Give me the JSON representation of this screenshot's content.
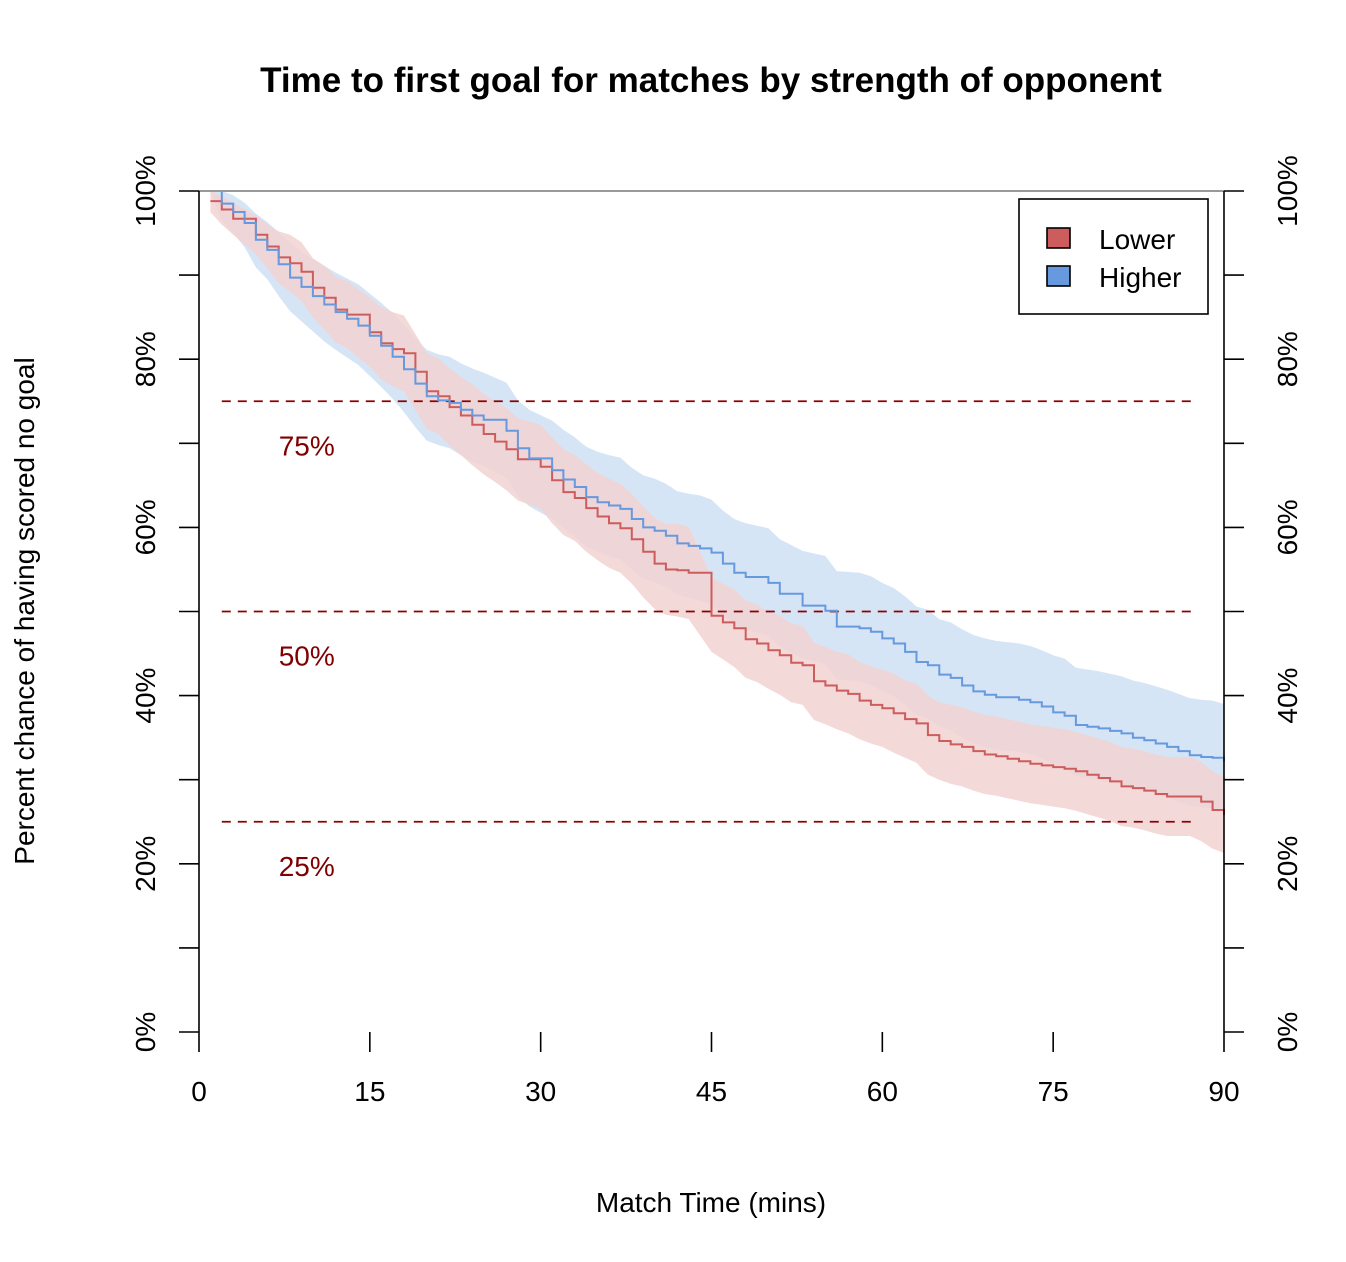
{
  "chart_data": {
    "type": "line",
    "title": "Time to first goal for matches by strength of opponent",
    "xlabel": "Match Time (mins)",
    "ylabel": "Percent chance of having scored no goal",
    "xlim": [
      0,
      90
    ],
    "ylim": [
      0,
      100
    ],
    "x_ticks": [
      "0",
      "15",
      "30",
      "45",
      "60",
      "75",
      "90"
    ],
    "x_tick_values": [
      0,
      15,
      30,
      45,
      60,
      75,
      90
    ],
    "y_ticks": [
      "0%",
      "20%",
      "40%",
      "60%",
      "80%",
      "100%"
    ],
    "y_tick_values": [
      0,
      20,
      40,
      60,
      80,
      100
    ],
    "y_minor_tick_values": [
      10,
      30,
      50,
      70,
      90
    ],
    "grid": false,
    "legend_position": "top-right",
    "reference_lines": [
      {
        "y": 75,
        "label": "75%"
      },
      {
        "y": 50,
        "label": "50%"
      },
      {
        "y": 25,
        "label": "25%"
      }
    ],
    "series": [
      {
        "name": "Lower",
        "color": "#cd5c5c",
        "band_color": "#f2d2d2",
        "x": [
          1,
          2,
          3,
          5,
          6,
          7,
          8,
          9,
          10,
          11,
          12,
          13,
          15,
          16,
          17,
          18,
          19,
          20,
          21,
          22,
          23,
          24,
          25,
          26,
          27,
          28,
          30,
          31,
          32,
          33,
          34,
          35,
          36,
          37,
          38,
          39,
          40,
          41,
          42,
          43,
          45,
          46,
          47,
          48,
          49,
          50,
          51,
          52,
          53,
          54,
          55,
          56,
          57,
          58,
          59,
          60,
          61,
          62,
          63,
          64,
          65,
          66,
          67,
          68,
          69,
          70,
          71,
          72,
          73,
          74,
          75,
          76,
          77,
          78,
          79,
          80,
          81,
          82,
          83,
          84,
          85,
          86,
          87,
          88,
          89,
          90
        ],
        "y": [
          98.8,
          97.8,
          96.7,
          94.8,
          93.4,
          92.1,
          91.4,
          90.4,
          88.5,
          87.3,
          85.9,
          85.3,
          83.2,
          81.9,
          81.2,
          80.7,
          78.5,
          76.2,
          75.6,
          74.3,
          73.3,
          72.2,
          71.1,
          70.2,
          69.3,
          68.1,
          67.2,
          65.6,
          64.2,
          63.5,
          62.3,
          61.3,
          60.5,
          59.9,
          58.6,
          57.1,
          55.7,
          55.0,
          54.9,
          54.6,
          49.5,
          48.7,
          48.0,
          46.7,
          46.2,
          45.4,
          44.8,
          43.9,
          43.6,
          41.7,
          41.2,
          40.6,
          40.2,
          39.4,
          38.9,
          38.5,
          37.9,
          37.2,
          36.7,
          35.3,
          34.6,
          34.2,
          33.9,
          33.4,
          33.0,
          32.8,
          32.5,
          32.2,
          31.9,
          31.7,
          31.5,
          31.3,
          31.0,
          30.6,
          30.2,
          29.8,
          29.2,
          29.0,
          28.7,
          28.3,
          28.0,
          28.0,
          28.0,
          27.4,
          26.4,
          25.8
        ],
        "lower": [
          97.5,
          96.0,
          94.8,
          92.5,
          90.8,
          89.0,
          88.0,
          86.9,
          85.0,
          83.5,
          82.0,
          81.3,
          79.1,
          77.6,
          76.8,
          76.2,
          74.0,
          71.7,
          71.1,
          69.7,
          68.6,
          67.4,
          66.3,
          65.4,
          64.4,
          63.2,
          62.2,
          60.5,
          59.1,
          58.4,
          57.1,
          56.1,
          55.2,
          54.6,
          53.3,
          51.7,
          50.3,
          49.6,
          49.4,
          49.1,
          45.2,
          44.3,
          43.4,
          42.1,
          41.6,
          40.8,
          40.1,
          39.2,
          38.9,
          37.1,
          36.6,
          36.0,
          35.5,
          34.8,
          34.3,
          33.9,
          33.2,
          32.6,
          32.0,
          30.6,
          30.0,
          29.5,
          29.2,
          28.7,
          28.3,
          28.1,
          27.8,
          27.5,
          27.2,
          27.0,
          26.8,
          26.6,
          26.3,
          25.9,
          25.5,
          25.1,
          24.5,
          24.3,
          24.0,
          23.6,
          23.3,
          23.3,
          23.3,
          22.7,
          21.8,
          21.3
        ],
        "upper": [
          100,
          99.4,
          98.6,
          97.1,
          96.0,
          95.2,
          94.8,
          93.9,
          92.0,
          91.1,
          89.8,
          89.3,
          87.3,
          86.2,
          85.6,
          85.2,
          83.0,
          80.7,
          80.1,
          78.9,
          77.9,
          77.0,
          75.9,
          75.0,
          74.2,
          73.0,
          72.2,
          70.7,
          69.3,
          68.6,
          67.5,
          66.5,
          65.8,
          65.2,
          64.0,
          62.5,
          61.1,
          60.4,
          60.4,
          60.1,
          54.1,
          53.3,
          52.6,
          51.3,
          50.8,
          50.0,
          49.5,
          48.6,
          48.3,
          46.3,
          45.8,
          45.2,
          44.9,
          44.0,
          43.5,
          43.1,
          42.6,
          41.8,
          41.4,
          40.0,
          39.2,
          38.9,
          38.6,
          38.1,
          37.7,
          37.5,
          37.2,
          36.9,
          36.6,
          36.4,
          36.2,
          36.0,
          35.7,
          35.3,
          34.9,
          34.5,
          33.9,
          33.7,
          33.4,
          33.0,
          32.7,
          32.7,
          32.7,
          32.1,
          31.0,
          30.4
        ]
      },
      {
        "name": "Higher",
        "color": "#6699dd",
        "band_color": "#cfe0f4",
        "x": [
          1,
          2,
          3,
          4,
          5,
          6,
          7,
          8,
          9,
          10,
          11,
          12,
          13,
          14,
          15,
          16,
          17,
          18,
          19,
          20,
          21,
          22,
          23,
          24,
          25,
          27,
          28,
          29,
          31,
          32,
          33,
          34,
          35,
          36,
          37,
          38,
          39,
          40,
          41,
          42,
          43,
          44,
          45,
          46,
          47,
          48,
          50,
          51,
          53,
          55,
          56,
          58,
          59,
          60,
          61,
          62,
          63,
          64,
          65,
          66,
          67,
          68,
          69,
          70,
          72,
          73,
          74,
          75,
          76,
          77,
          78,
          79,
          80,
          81,
          82,
          83,
          84,
          85,
          86,
          87,
          88,
          89,
          90
        ],
        "y": [
          100,
          98.5,
          97.5,
          96.2,
          94.2,
          93.0,
          91.3,
          89.7,
          88.6,
          87.5,
          86.5,
          85.6,
          84.8,
          84.0,
          82.8,
          81.6,
          80.3,
          78.8,
          77.1,
          75.6,
          75.1,
          74.8,
          74.0,
          73.3,
          72.8,
          71.5,
          69.4,
          68.2,
          66.8,
          65.7,
          64.8,
          63.6,
          63.0,
          62.6,
          62.2,
          61.0,
          60.0,
          59.6,
          59.0,
          58.1,
          57.8,
          57.5,
          57.0,
          55.7,
          54.6,
          54.1,
          53.4,
          52.1,
          50.7,
          50.1,
          48.2,
          48.0,
          47.6,
          46.8,
          46.2,
          45.2,
          44.0,
          43.6,
          42.5,
          42.1,
          41.2,
          40.5,
          40.1,
          39.8,
          39.5,
          39.2,
          38.7,
          38.0,
          37.6,
          36.5,
          36.3,
          36.1,
          35.8,
          35.5,
          35.0,
          34.7,
          34.3,
          33.9,
          33.4,
          32.9,
          32.7,
          32.6,
          32.2
        ],
        "lower": [
          100,
          96.5,
          95.0,
          93.3,
          90.9,
          89.5,
          87.5,
          85.7,
          84.5,
          83.3,
          82.1,
          81.1,
          80.2,
          79.3,
          78.0,
          76.7,
          75.3,
          73.7,
          71.9,
          70.3,
          69.8,
          69.4,
          68.6,
          67.8,
          67.3,
          65.9,
          63.7,
          62.5,
          61.0,
          59.9,
          58.9,
          57.7,
          57.1,
          56.6,
          56.2,
          55.0,
          53.9,
          53.5,
          52.9,
          52.0,
          51.6,
          51.3,
          50.8,
          49.5,
          48.4,
          47.9,
          47.1,
          45.8,
          44.4,
          43.8,
          41.9,
          41.7,
          41.3,
          40.5,
          39.9,
          38.9,
          37.7,
          37.3,
          36.3,
          35.9,
          35.0,
          34.3,
          33.9,
          33.6,
          33.3,
          33.0,
          32.5,
          31.9,
          31.5,
          30.4,
          30.2,
          30.0,
          29.7,
          29.4,
          28.9,
          28.6,
          28.3,
          27.9,
          27.4,
          26.9,
          26.7,
          26.6,
          26.2
        ],
        "upper": [
          100,
          100,
          99.5,
          98.6,
          97.3,
          96.3,
          95.1,
          93.8,
          92.8,
          91.9,
          91.1,
          90.3,
          89.6,
          88.9,
          87.8,
          86.7,
          85.5,
          84.1,
          82.5,
          81.1,
          80.6,
          80.3,
          79.5,
          78.9,
          78.4,
          77.2,
          75.1,
          74.0,
          72.7,
          71.6,
          70.7,
          69.6,
          69.0,
          68.6,
          68.3,
          67.1,
          66.2,
          65.8,
          65.2,
          64.3,
          64.0,
          63.8,
          63.3,
          62.0,
          61.0,
          60.5,
          59.9,
          58.6,
          57.2,
          56.6,
          54.8,
          54.6,
          54.2,
          53.4,
          52.8,
          51.8,
          50.6,
          50.2,
          49.1,
          48.7,
          47.9,
          47.2,
          46.8,
          46.5,
          46.2,
          45.9,
          45.4,
          44.8,
          44.4,
          43.3,
          43.1,
          42.9,
          42.6,
          42.3,
          41.8,
          41.5,
          41.1,
          40.7,
          40.2,
          39.7,
          39.5,
          39.4,
          39.0
        ]
      }
    ]
  }
}
